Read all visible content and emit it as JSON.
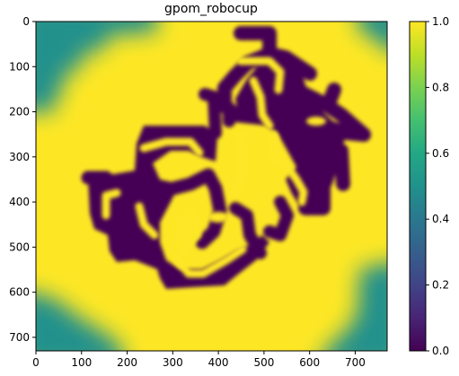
{
  "chart_data": {
    "type": "heatmap",
    "title": "gpom_robocup",
    "xlabel": "",
    "ylabel": "",
    "xlim": [
      0,
      770
    ],
    "ylim": [
      730,
      0
    ],
    "x_ticks": [
      0,
      100,
      200,
      300,
      400,
      500,
      600,
      700
    ],
    "y_ticks": [
      0,
      100,
      200,
      300,
      400,
      500,
      600,
      700
    ],
    "colorbar": {
      "colormap": "viridis",
      "range": [
        0,
        1
      ],
      "ticks": [
        "0.0",
        "0.2",
        "0.4",
        "0.6",
        "0.8",
        "1.0"
      ]
    },
    "levels": {
      "occupied": 0.0,
      "free": 1.0,
      "corner_unknown": 0.5
    },
    "colors": {
      "low": "#440154",
      "mid": "#21918c",
      "high": "#fde725"
    }
  }
}
